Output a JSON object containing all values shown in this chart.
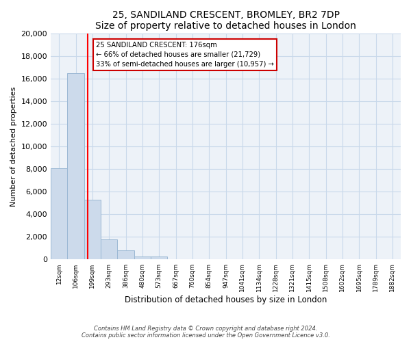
{
  "title": "25, SANDILAND CRESCENT, BROMLEY, BR2 7DP",
  "subtitle": "Size of property relative to detached houses in London",
  "xlabel": "Distribution of detached houses by size in London",
  "ylabel": "Number of detached properties",
  "bar_color": "#ccdaeb",
  "bar_edge_color": "#9bb8d4",
  "categories": [
    "12sqm",
    "106sqm",
    "199sqm",
    "293sqm",
    "386sqm",
    "480sqm",
    "573sqm",
    "667sqm",
    "760sqm",
    "854sqm",
    "947sqm",
    "1041sqm",
    "1134sqm",
    "1228sqm",
    "1321sqm",
    "1415sqm",
    "1508sqm",
    "1602sqm",
    "1695sqm",
    "1789sqm",
    "1882sqm"
  ],
  "values": [
    8100,
    16500,
    5300,
    1800,
    800,
    300,
    270,
    0,
    0,
    0,
    0,
    0,
    0,
    0,
    0,
    0,
    0,
    0,
    0,
    0,
    0
  ],
  "ylim": [
    0,
    20000
  ],
  "yticks": [
    0,
    2000,
    4000,
    6000,
    8000,
    10000,
    12000,
    14000,
    16000,
    18000,
    20000
  ],
  "red_line_x": 1.72,
  "annotation_text_line1": "25 SANDILAND CRESCENT: 176sqm",
  "annotation_text_line2": "← 66% of detached houses are smaller (21,729)",
  "annotation_text_line3": "33% of semi-detached houses are larger (10,957) →",
  "footer_line1": "Contains HM Land Registry data © Crown copyright and database right 2024.",
  "footer_line2": "Contains public sector information licensed under the Open Government Licence v3.0.",
  "grid_color": "#c8d8ea",
  "background_color": "#edf2f8"
}
